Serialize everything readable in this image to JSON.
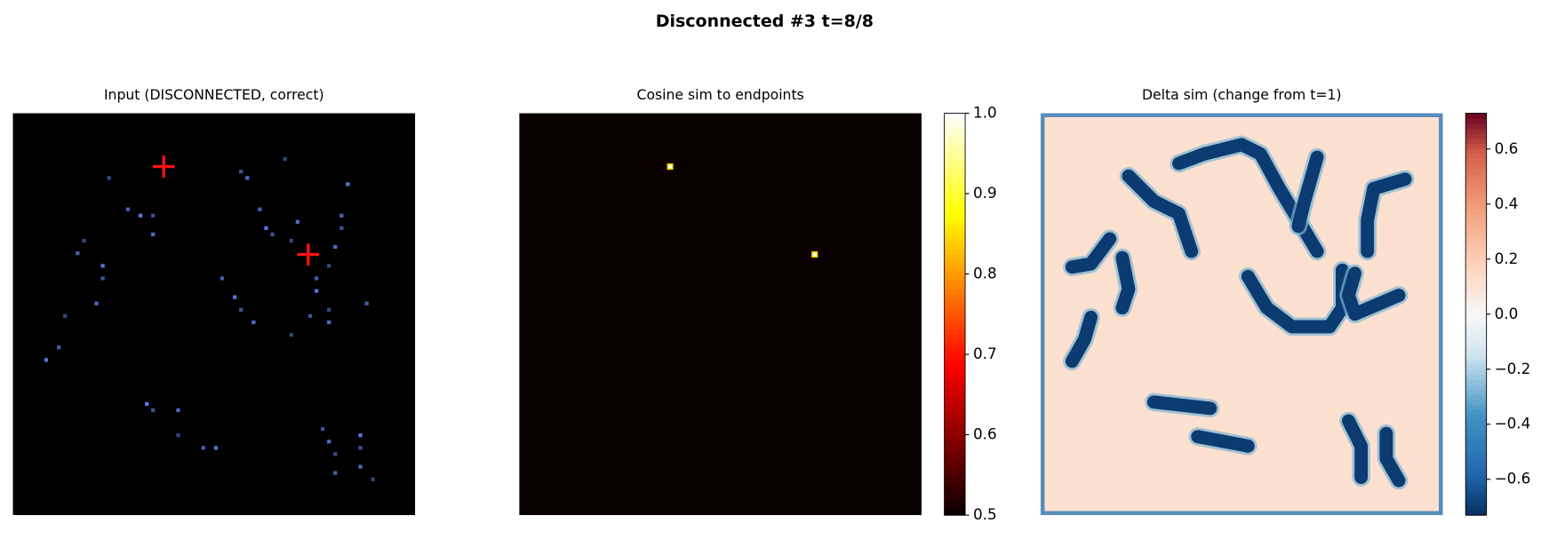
{
  "title": "Disconnected #3  t=8/8",
  "chart_data": [
    {
      "type": "points",
      "title": "Input (DISCONNECTED, correct)",
      "size": 64,
      "background": "#000000",
      "dot_color": "#5577dd",
      "marker_color": "#ff1111",
      "markers": [
        [
          24,
          8.5
        ],
        [
          47,
          22.5
        ]
      ],
      "bright_pixels": [
        [
          15,
          10
        ],
        [
          18,
          15
        ],
        [
          20,
          16
        ],
        [
          22,
          16
        ],
        [
          22,
          19
        ],
        [
          11,
          20
        ],
        [
          10,
          22
        ],
        [
          14,
          24
        ],
        [
          14,
          26
        ],
        [
          13,
          30
        ],
        [
          8,
          32
        ],
        [
          7,
          37
        ],
        [
          5,
          39
        ],
        [
          36,
          9
        ],
        [
          37,
          10
        ],
        [
          43,
          7
        ],
        [
          39,
          15
        ],
        [
          40,
          18
        ],
        [
          41,
          19
        ],
        [
          45,
          17
        ],
        [
          44,
          20
        ],
        [
          52,
          16
        ],
        [
          53,
          11
        ],
        [
          52,
          18
        ],
        [
          51,
          21
        ],
        [
          50,
          24
        ],
        [
          48,
          26
        ],
        [
          48,
          28
        ],
        [
          47,
          32
        ],
        [
          50,
          33
        ],
        [
          50,
          31
        ],
        [
          33,
          26
        ],
        [
          35,
          29
        ],
        [
          36,
          31
        ],
        [
          38,
          33
        ],
        [
          44,
          35
        ],
        [
          56,
          30
        ],
        [
          21,
          46
        ],
        [
          22,
          47
        ],
        [
          26,
          47
        ],
        [
          26,
          51
        ],
        [
          30,
          53
        ],
        [
          32,
          53
        ],
        [
          49,
          50
        ],
        [
          50,
          52
        ],
        [
          51,
          54
        ],
        [
          51,
          57
        ],
        [
          55,
          51
        ],
        [
          55,
          53
        ],
        [
          55,
          56
        ],
        [
          57,
          58
        ]
      ]
    },
    {
      "type": "heat",
      "title": "Cosine sim to endpoints",
      "size": 64,
      "cmap": "hot",
      "background_value": 0.5,
      "hotspot_value": 0.85,
      "hotspots": [
        [
          24,
          8.5
        ],
        [
          47,
          22.5
        ]
      ],
      "colorbar": {
        "lim": [
          0.5,
          1.0
        ],
        "ticks": [
          0.5,
          0.6,
          0.7,
          0.8,
          0.9,
          {
            "value": 1.0,
            "label": "1.0"
          }
        ]
      }
    },
    {
      "type": "strokes",
      "title": "Delta sim (change from t=1)",
      "size": 64,
      "cmap": "RdBu_r",
      "background_value": 0.12,
      "border_value": -0.5,
      "stroke_value": -0.7,
      "strokes": [
        [
          [
            14,
            10
          ],
          [
            18,
            14
          ],
          [
            22,
            16
          ],
          [
            24,
            22
          ]
        ],
        [
          [
            22,
            8
          ],
          [
            26,
            6.5
          ],
          [
            32,
            5
          ],
          [
            35,
            6.5
          ],
          [
            38,
            12
          ],
          [
            41,
            17
          ],
          [
            44,
            22
          ]
        ],
        [
          [
            44,
            7
          ],
          [
            42,
            14
          ],
          [
            41,
            18
          ]
        ],
        [
          [
            58,
            10.5
          ],
          [
            53,
            12
          ],
          [
            52,
            17
          ],
          [
            52,
            22
          ]
        ],
        [
          [
            5,
            24.5
          ],
          [
            8,
            24
          ],
          [
            11,
            20
          ]
        ],
        [
          [
            13,
            23
          ],
          [
            14,
            28
          ],
          [
            13,
            31
          ]
        ],
        [
          [
            8,
            32.5
          ],
          [
            7,
            36
          ],
          [
            5,
            39.5
          ]
        ],
        [
          [
            33,
            26
          ],
          [
            36,
            31
          ],
          [
            40,
            34
          ],
          [
            46,
            34
          ],
          [
            48,
            31
          ],
          [
            48,
            25
          ]
        ],
        [
          [
            50,
            25.5
          ],
          [
            49,
            29
          ],
          [
            50,
            32
          ],
          [
            57,
            29
          ]
        ],
        [
          [
            18,
            46
          ],
          [
            27,
            47
          ]
        ],
        [
          [
            25,
            51.5
          ],
          [
            33,
            53
          ]
        ],
        [
          [
            49,
            49
          ],
          [
            51,
            53
          ],
          [
            51,
            58
          ]
        ],
        [
          [
            55,
            51
          ],
          [
            55,
            55
          ],
          [
            57,
            58.5
          ]
        ]
      ],
      "colorbar": {
        "lim": [
          -0.73,
          0.73
        ],
        "ticks": [
          {
            "value": -0.6,
            "label": "−0.6"
          },
          {
            "value": -0.4,
            "label": "−0.4"
          },
          {
            "value": -0.2,
            "label": "−0.2"
          },
          {
            "value": 0,
            "label": "0.0"
          },
          0.2,
          0.4,
          0.6
        ]
      }
    }
  ]
}
